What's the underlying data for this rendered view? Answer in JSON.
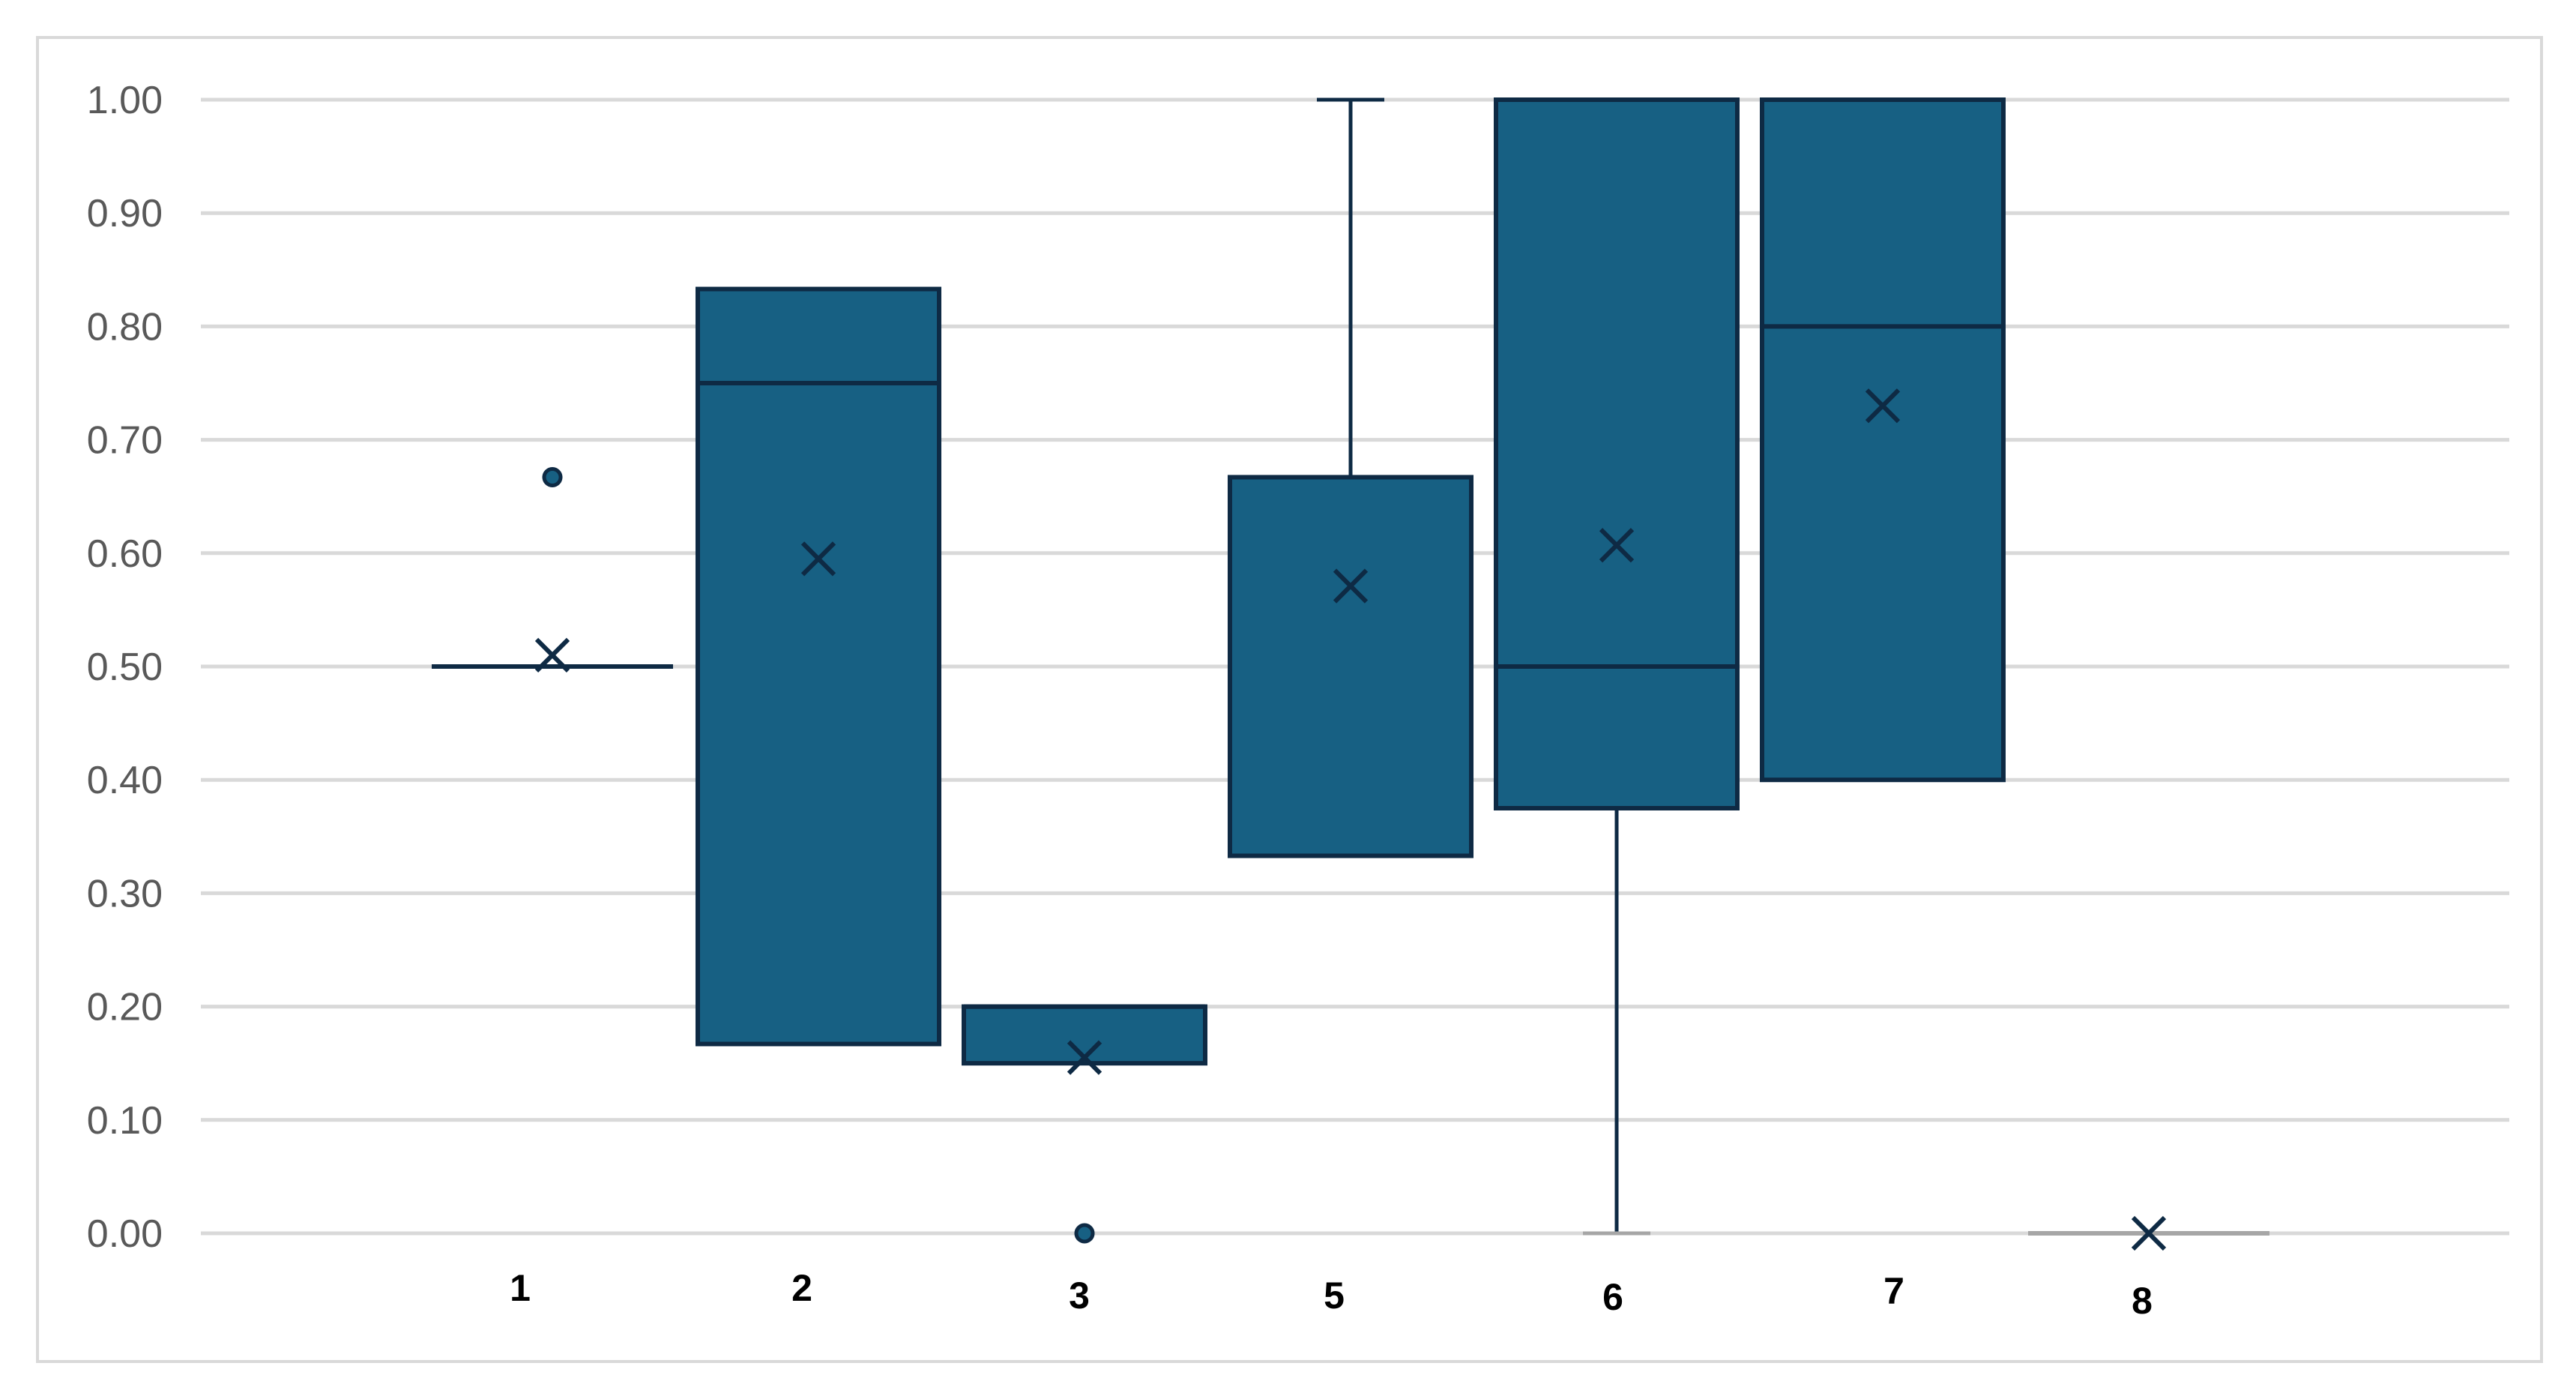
{
  "chart_data": {
    "type": "box",
    "title": "",
    "xlabel": "",
    "ylabel": "",
    "ylim": [
      0,
      1
    ],
    "y_ticks": [
      "0.00",
      "0.10",
      "0.20",
      "0.30",
      "0.40",
      "0.50",
      "0.60",
      "0.70",
      "0.80",
      "0.90",
      "1.00"
    ],
    "grid": true,
    "legend": "none",
    "colors": {
      "box_fill": "#176083",
      "box_edge": "#0e2a44",
      "grid": "#d9d9d9",
      "frame": "#d9d9d9"
    },
    "categories": [
      "1",
      "2",
      "3",
      "5",
      "6",
      "7",
      "8"
    ],
    "boxes": [
      {
        "label": "1",
        "q1": 0.5,
        "median": 0.5,
        "q3": 0.5,
        "whisker_low": 0.5,
        "whisker_high": 0.5,
        "mean": 0.51,
        "outliers": [
          0.667
        ]
      },
      {
        "label": "2",
        "q1": 0.167,
        "median": 0.75,
        "q3": 0.833,
        "whisker_low": 0.167,
        "whisker_high": 0.833,
        "mean": 0.595,
        "outliers": []
      },
      {
        "label": "3",
        "q1": 0.15,
        "median": 0.2,
        "q3": 0.2,
        "whisker_low": 0.15,
        "whisker_high": 0.2,
        "mean": 0.155,
        "outliers": [
          0.0
        ]
      },
      {
        "label": "5",
        "q1": 0.333,
        "median": 0.667,
        "q3": 0.667,
        "whisker_low": 0.333,
        "whisker_high": 1.0,
        "mean": 0.571,
        "outliers": []
      },
      {
        "label": "6",
        "q1": 0.375,
        "median": 0.5,
        "q3": 1.0,
        "whisker_low": 0.0,
        "whisker_high": 1.0,
        "mean": 0.607,
        "outliers": []
      },
      {
        "label": "7",
        "q1": 0.4,
        "median": 0.8,
        "q3": 1.0,
        "whisker_low": 0.4,
        "whisker_high": 1.0,
        "mean": 0.73,
        "outliers": []
      },
      {
        "label": "8",
        "q1": 0.0,
        "median": 0.0,
        "q3": 0.0,
        "whisker_low": 0.0,
        "whisker_high": 0.0,
        "mean": 0.0,
        "outliers": []
      }
    ]
  }
}
